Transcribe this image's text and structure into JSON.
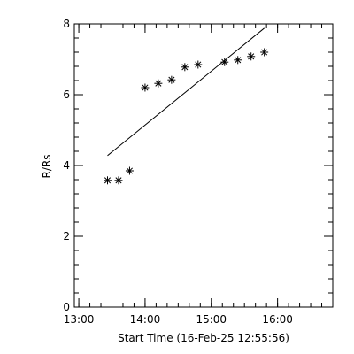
{
  "chart_data": {
    "type": "scatter",
    "xlabel": "Start Time (16-Feb-25 12:55:56)",
    "ylabel": "R/Rs",
    "x_ticks": [
      "13:00",
      "14:00",
      "15:00",
      "16:00"
    ],
    "y_ticks": [
      "0",
      "2",
      "4",
      "6",
      "8"
    ],
    "xlim": [
      "12:55:56",
      "16:50:00"
    ],
    "ylim": [
      0,
      8
    ],
    "series": [
      {
        "marker": "asterisk",
        "x": [
          "13:26",
          "13:36",
          "13:46",
          "14:00",
          "14:12",
          "14:24",
          "14:36",
          "14:48",
          "15:12",
          "15:24",
          "15:36",
          "15:48"
        ],
        "y": [
          3.58,
          3.58,
          3.85,
          6.2,
          6.32,
          6.42,
          6.78,
          6.85,
          6.92,
          6.98,
          7.08,
          7.2
        ]
      }
    ],
    "fit_line": {
      "x": [
        "13:26",
        "15:48"
      ],
      "y": [
        4.28,
        7.88
      ]
    },
    "grid": false
  }
}
